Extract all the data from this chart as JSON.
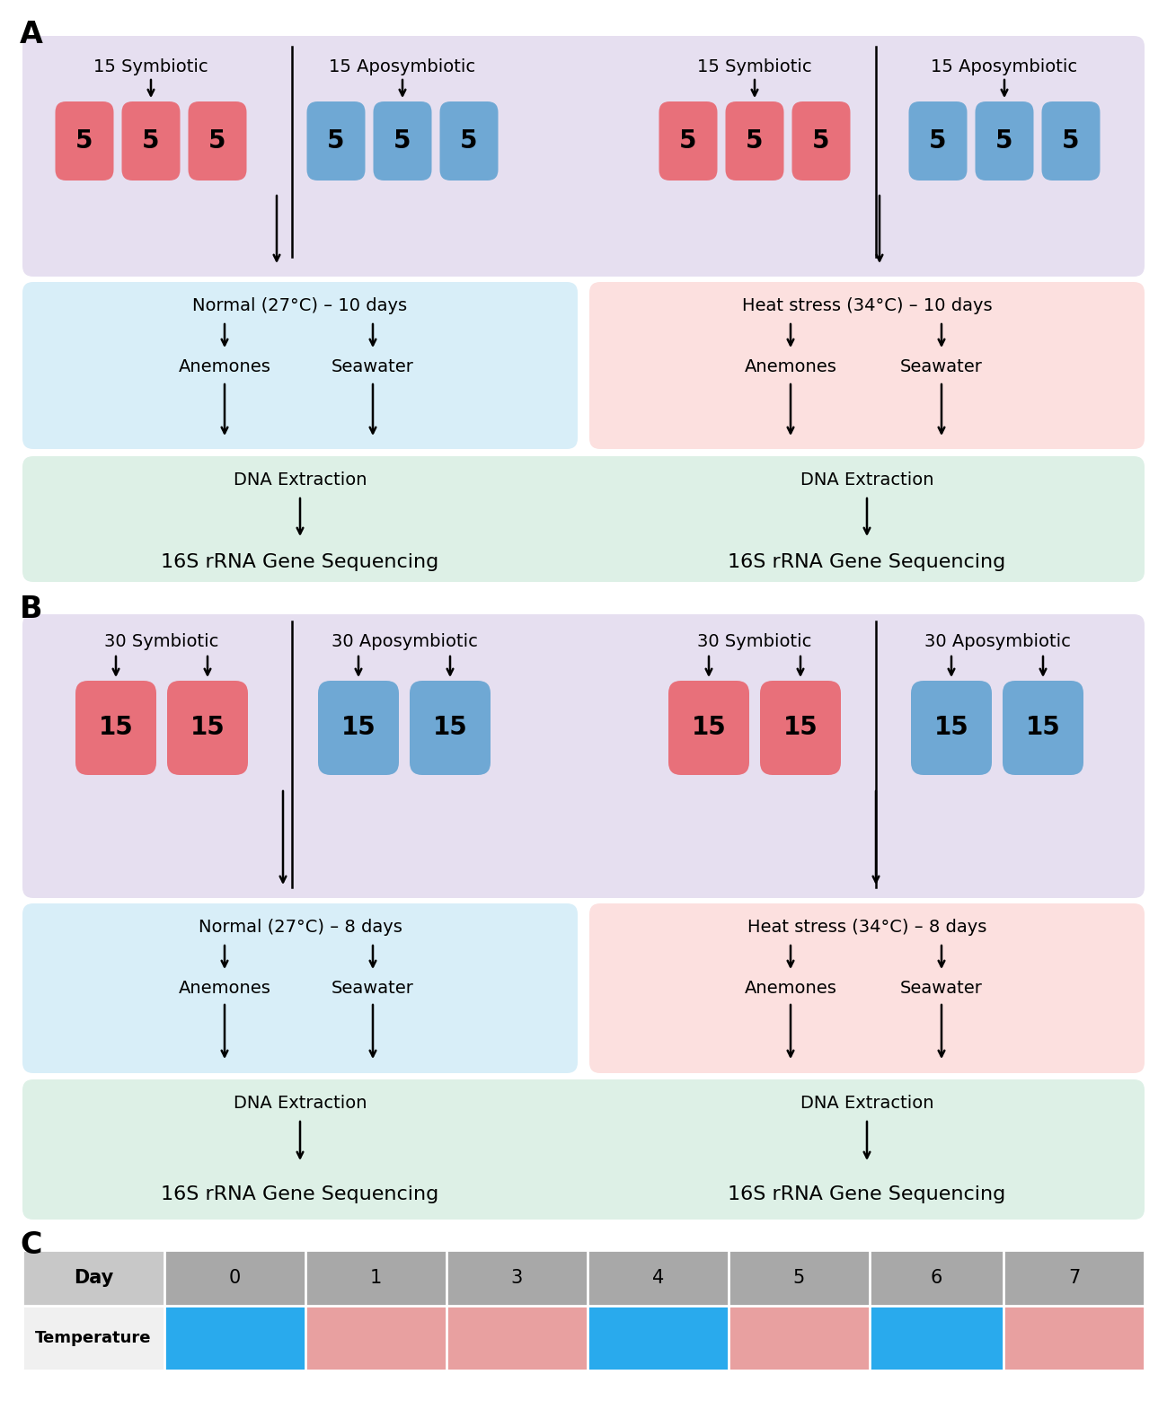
{
  "bg_color": "#ffffff",
  "purple_bg": "#e6dff0",
  "blue_bg": "#d8eef8",
  "pink_bg": "#fce0df",
  "green_bg": "#ddf0e6",
  "red_box": "#e8707a",
  "blue_box": "#6fa8d4",
  "gray_header": "#a8a8a8",
  "gray_day_label": "#c8c8c8",
  "table_blue": "#29aaed",
  "table_pink": "#e8a0a0",
  "section_A_label": "A",
  "section_B_label": "B",
  "section_C_label": "C",
  "days": [
    "Day",
    "0",
    "1",
    "3",
    "4",
    "5",
    "6",
    "7"
  ],
  "temp_colors": [
    "#f0f0f0",
    "#29aaed",
    "#e8a0a0",
    "#e8a0a0",
    "#29aaed",
    "#e8a0a0",
    "#29aaed",
    "#e8a0a0"
  ]
}
